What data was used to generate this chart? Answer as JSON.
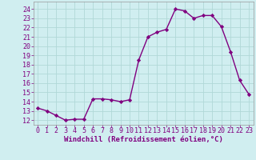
{
  "x": [
    0,
    1,
    2,
    3,
    4,
    5,
    6,
    7,
    8,
    9,
    10,
    11,
    12,
    13,
    14,
    15,
    16,
    17,
    18,
    19,
    20,
    21,
    22,
    23
  ],
  "y": [
    13.3,
    13.0,
    12.5,
    12.0,
    12.1,
    12.1,
    14.3,
    14.3,
    14.2,
    14.0,
    14.2,
    18.5,
    21.0,
    21.5,
    21.8,
    24.0,
    23.8,
    23.0,
    23.3,
    23.3,
    22.1,
    19.4,
    16.3,
    14.8
  ],
  "line_color": "#800080",
  "marker": "D",
  "marker_size": 2.2,
  "line_width": 1.0,
  "bg_color": "#d0eef0",
  "grid_color": "#b0d8d8",
  "xlabel": "Windchill (Refroidissement éolien,°C)",
  "xlabel_fontsize": 6.5,
  "tick_fontsize": 6.0,
  "ylim": [
    11.5,
    24.8
  ],
  "yticks": [
    12,
    13,
    14,
    15,
    16,
    17,
    18,
    19,
    20,
    21,
    22,
    23,
    24
  ],
  "xticks": [
    0,
    1,
    2,
    3,
    4,
    5,
    6,
    7,
    8,
    9,
    10,
    11,
    12,
    13,
    14,
    15,
    16,
    17,
    18,
    19,
    20,
    21,
    22,
    23
  ],
  "xlim": [
    -0.5,
    23.5
  ]
}
